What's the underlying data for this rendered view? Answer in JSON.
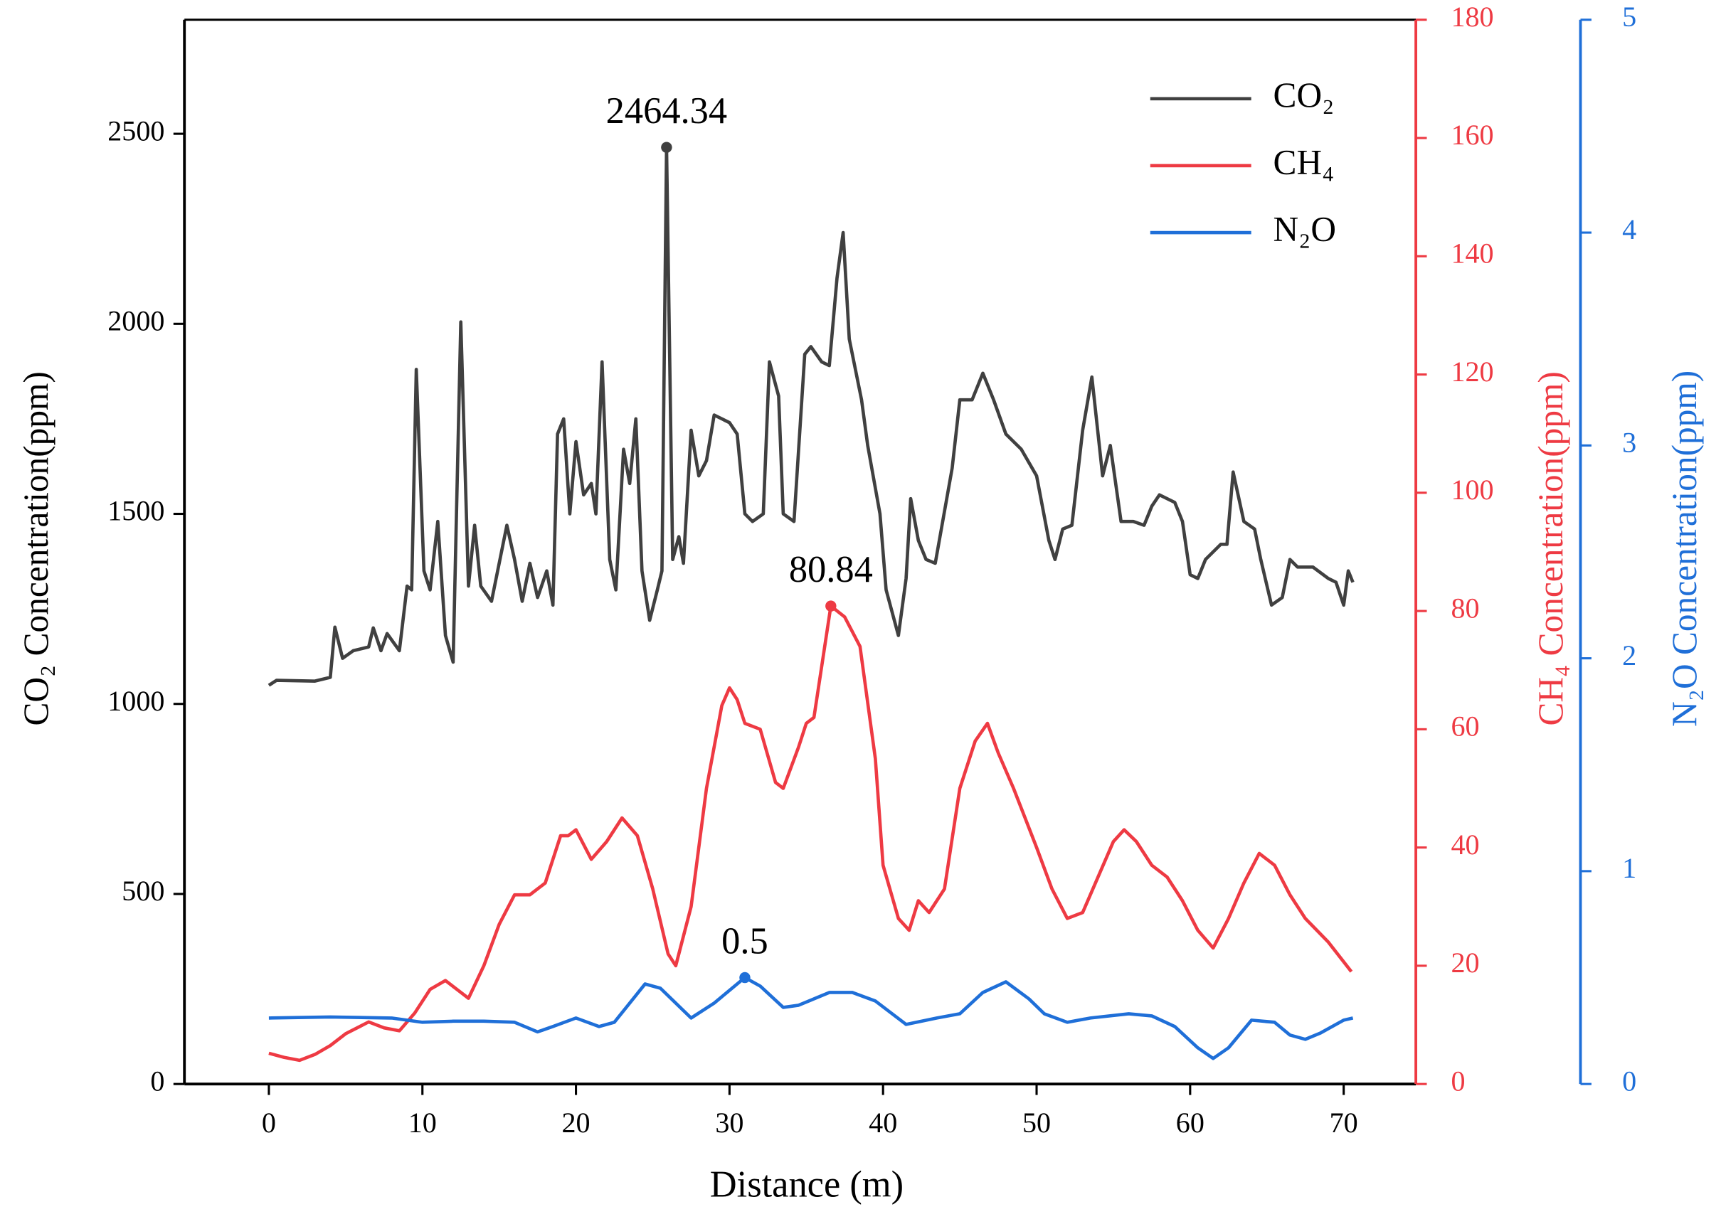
{
  "chart_data": {
    "type": "line",
    "xlabel": "Distance (m)",
    "ylabel": "CO₂ Concentration(ppm)",
    "y2label": "CH₄ Concentration(ppm)",
    "y3label": "N₂O Concentration(ppm)",
    "xlim": [
      -5.5,
      74.7
    ],
    "xticks": [
      0,
      10,
      20,
      30,
      40,
      50,
      60,
      70
    ],
    "ylim": [
      0,
      2800
    ],
    "yticks": [
      0,
      500,
      1000,
      1500,
      2000,
      2500
    ],
    "y2lim": [
      0,
      180
    ],
    "y2ticks": [
      0,
      20,
      40,
      60,
      80,
      100,
      120,
      140,
      160,
      180
    ],
    "y3lim": [
      0,
      5
    ],
    "y3ticks": [
      0,
      1,
      2,
      3,
      4,
      5
    ],
    "legend": "upper right",
    "series": [
      {
        "name": "CO₂",
        "color": "#404040",
        "axis": "y",
        "x": [
          0,
          0.5,
          3,
          4,
          4.3,
          4.8,
          5.5,
          6.5,
          6.8,
          7.3,
          7.7,
          8.5,
          9,
          9.3,
          9.6,
          10.1,
          10.5,
          11,
          11.5,
          12,
          12.5,
          13,
          13.4,
          13.8,
          14.5,
          15.5,
          16,
          16.5,
          17,
          17.5,
          18.1,
          18.5,
          18.8,
          19.2,
          19.6,
          20,
          20.5,
          21,
          21.3,
          21.7,
          22.2,
          22.6,
          23.1,
          23.5,
          23.9,
          24.3,
          24.8,
          25.3,
          25.6,
          25.9,
          26.3,
          26.7,
          27,
          27.5,
          28,
          28.5,
          29,
          30,
          30.5,
          31,
          31.5,
          32.2,
          32.6,
          33.2,
          33.5,
          34.2,
          34.9,
          35.3,
          36,
          36.5,
          37,
          37.4,
          37.8,
          38.6,
          39,
          39.8,
          40.2,
          41,
          41.5,
          41.8,
          42.3,
          42.8,
          43.4,
          44.5,
          45,
          45.8,
          46.5,
          47.2,
          48,
          49,
          50,
          50.8,
          51.2,
          51.7,
          52.3,
          53,
          53.6,
          54.3,
          54.8,
          55.5,
          56.3,
          57,
          57.5,
          58,
          59,
          59.5,
          60,
          60.5,
          61,
          62,
          62.4,
          62.8,
          63.5,
          64.2,
          64.6,
          65.3,
          66,
          66.5,
          67,
          68,
          69,
          69.5,
          70,
          70.3,
          70.6
        ],
        "values": [
          1049,
          1062,
          1060,
          1070,
          1202,
          1120,
          1140,
          1150,
          1200,
          1140,
          1185,
          1140,
          1310,
          1300,
          1880,
          1350,
          1300,
          1480,
          1180,
          1110,
          2005,
          1310,
          1470,
          1310,
          1270,
          1470,
          1380,
          1270,
          1370,
          1280,
          1350,
          1260,
          1710,
          1750,
          1500,
          1690,
          1550,
          1580,
          1500,
          1900,
          1380,
          1300,
          1670,
          1580,
          1750,
          1350,
          1220,
          1300,
          1350,
          2464.34,
          1380,
          1440,
          1370,
          1720,
          1600,
          1640,
          1760,
          1740,
          1710,
          1500,
          1480,
          1500,
          1900,
          1810,
          1500,
          1480,
          1920,
          1940,
          1900,
          1890,
          2120,
          2240,
          1960,
          1800,
          1680,
          1500,
          1300,
          1180,
          1330,
          1540,
          1430,
          1380,
          1370,
          1620,
          1800,
          1800,
          1870,
          1800,
          1710,
          1670,
          1600,
          1430,
          1380,
          1460,
          1470,
          1720,
          1860,
          1600,
          1680,
          1480,
          1480,
          1470,
          1520,
          1550,
          1530,
          1480,
          1340,
          1330,
          1380,
          1420,
          1420,
          1610,
          1480,
          1460,
          1380,
          1260,
          1280,
          1380,
          1360,
          1360,
          1330,
          1320,
          1260,
          1350,
          1320
        ]
      },
      {
        "name": "CH₄",
        "color": "#ee3a43",
        "axis": "y2",
        "x": [
          0,
          1,
          2,
          3,
          4,
          5,
          6.5,
          7.5,
          8.5,
          9.5,
          10.5,
          11.5,
          12.5,
          13,
          14,
          15,
          16,
          17,
          18,
          19,
          19.5,
          20,
          21,
          22,
          23,
          24,
          25,
          26,
          26.5,
          27.5,
          28.5,
          29.5,
          30,
          30.5,
          31,
          32,
          33,
          33.5,
          34.5,
          35,
          35.5,
          36.6,
          37.5,
          38.5,
          39.5,
          40,
          41,
          41.7,
          42.3,
          43,
          44,
          45,
          46,
          46.8,
          47.5,
          48.5,
          50,
          51,
          52,
          53,
          54,
          55,
          55.7,
          56.5,
          57.5,
          58.5,
          59.5,
          60.5,
          61.5,
          62.5,
          63.5,
          64.5,
          65.5,
          66.5,
          67.5,
          69,
          70.5
        ],
        "values": [
          5.2,
          4.5,
          4,
          5,
          6.5,
          8.5,
          10.5,
          9.5,
          9,
          12,
          16,
          17.5,
          15.5,
          14.5,
          20,
          27,
          32,
          32,
          34,
          42,
          42,
          43,
          38,
          41,
          45,
          42,
          33,
          22,
          20,
          30,
          50,
          64,
          67,
          65,
          61,
          60,
          51,
          50,
          57,
          61,
          62,
          80.84,
          79,
          74,
          55,
          37,
          28,
          26,
          31,
          29,
          33,
          50,
          58,
          61,
          56,
          50,
          40,
          33,
          28,
          29,
          35,
          41,
          43,
          41,
          37,
          35,
          31,
          26,
          23,
          28,
          34,
          39,
          37,
          32,
          28,
          24,
          19
        ]
      },
      {
        "name": "N₂O",
        "color": "#1f6fd8",
        "axis": "y3",
        "x": [
          0,
          4,
          8,
          10,
          12,
          14,
          16,
          17.5,
          18.5,
          20,
          21.5,
          22.5,
          24.5,
          25.5,
          27.5,
          29,
          31,
          32,
          33.5,
          34.5,
          36.5,
          38,
          39.5,
          41.5,
          43.5,
          45,
          46.5,
          48,
          49.5,
          50.5,
          52,
          53.5,
          56,
          57.5,
          59,
          60.5,
          61.5,
          62.5,
          64,
          65.5,
          66.5,
          67.5,
          68.5,
          70,
          70.6
        ],
        "values": [
          0.31,
          0.315,
          0.31,
          0.29,
          0.295,
          0.295,
          0.29,
          0.245,
          0.27,
          0.31,
          0.27,
          0.29,
          0.47,
          0.45,
          0.31,
          0.38,
          0.5,
          0.46,
          0.36,
          0.37,
          0.43,
          0.43,
          0.39,
          0.28,
          0.31,
          0.33,
          0.43,
          0.48,
          0.4,
          0.33,
          0.29,
          0.31,
          0.33,
          0.32,
          0.27,
          0.17,
          0.12,
          0.17,
          0.3,
          0.29,
          0.23,
          0.21,
          0.24,
          0.3,
          0.31
        ]
      }
    ],
    "annotations": [
      {
        "text": "2464.34",
        "x": 25.9,
        "y": 2464.34,
        "axis": "y",
        "series": 0
      },
      {
        "text": "80.84",
        "x": 36.6,
        "y": 80.84,
        "axis": "y2",
        "series": 1
      },
      {
        "text": "0.5",
        "x": 31,
        "y": 0.5,
        "axis": "y3",
        "series": 2
      }
    ]
  }
}
